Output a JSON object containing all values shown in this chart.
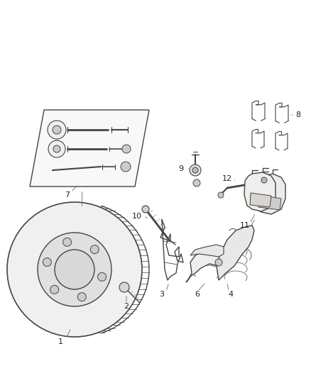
{
  "bg_color": "#ffffff",
  "lc": "#444444",
  "lc_light": "#888888",
  "fig_width": 4.38,
  "fig_height": 5.33,
  "dpi": 100,
  "label_fontsize": 8,
  "label_color": "#222222"
}
